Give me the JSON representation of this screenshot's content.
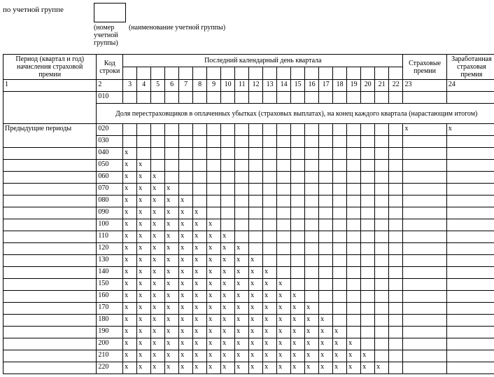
{
  "header": {
    "group_label": "по учетной группе",
    "group_number_caption": "(номер учетной группы)",
    "group_name_caption": "(наименование учетной группы)"
  },
  "columns": {
    "period": "Период (квартал и год) начисления страховой премии",
    "code": "Код строки",
    "days": "Последний календарный день квартала",
    "premium": "Страховые премии",
    "earned": "Заработанная страховая премия"
  },
  "num_row": {
    "period": "1",
    "code": "2",
    "days": [
      "3",
      "4",
      "5",
      "6",
      "7",
      "8",
      "9",
      "10",
      "11",
      "12",
      "13",
      "14",
      "15",
      "16",
      "17",
      "18",
      "19",
      "20",
      "21",
      "22"
    ],
    "premium": "23",
    "earned": "24"
  },
  "sub_header": "Доля перестраховщиков в оплаченных убытках (страховых выплатах), на конец каждого квартала (нарастающим итогом)",
  "prev_label": "Предыдущие периоды",
  "x": "х",
  "rows": [
    {
      "code": "010",
      "xcount": 0,
      "prem": "",
      "earn": "",
      "special": "no_bottom_period"
    },
    {
      "code": "020",
      "xcount": 0,
      "prem": "х",
      "earn": "х"
    },
    {
      "code": "030",
      "xcount": 0,
      "prem": "",
      "earn": ""
    },
    {
      "code": "040",
      "xcount": 1,
      "prem": "",
      "earn": ""
    },
    {
      "code": "050",
      "xcount": 2,
      "prem": "",
      "earn": ""
    },
    {
      "code": "060",
      "xcount": 3,
      "prem": "",
      "earn": ""
    },
    {
      "code": "070",
      "xcount": 4,
      "prem": "",
      "earn": ""
    },
    {
      "code": "080",
      "xcount": 5,
      "prem": "",
      "earn": ""
    },
    {
      "code": "090",
      "xcount": 6,
      "prem": "",
      "earn": ""
    },
    {
      "code": "100",
      "xcount": 7,
      "prem": "",
      "earn": ""
    },
    {
      "code": "110",
      "xcount": 8,
      "prem": "",
      "earn": ""
    },
    {
      "code": "120",
      "xcount": 9,
      "prem": "",
      "earn": ""
    },
    {
      "code": "130",
      "xcount": 10,
      "prem": "",
      "earn": ""
    },
    {
      "code": "140",
      "xcount": 11,
      "prem": "",
      "earn": ""
    },
    {
      "code": "150",
      "xcount": 12,
      "prem": "",
      "earn": ""
    },
    {
      "code": "160",
      "xcount": 13,
      "prem": "",
      "earn": ""
    },
    {
      "code": "170",
      "xcount": 14,
      "prem": "",
      "earn": ""
    },
    {
      "code": "180",
      "xcount": 15,
      "prem": "",
      "earn": ""
    },
    {
      "code": "190",
      "xcount": 16,
      "prem": "",
      "earn": ""
    },
    {
      "code": "200",
      "xcount": 17,
      "prem": "",
      "earn": ""
    },
    {
      "code": "210",
      "xcount": 18,
      "prem": "",
      "earn": ""
    },
    {
      "code": "220",
      "xcount": 19,
      "prem": "",
      "earn": ""
    }
  ]
}
